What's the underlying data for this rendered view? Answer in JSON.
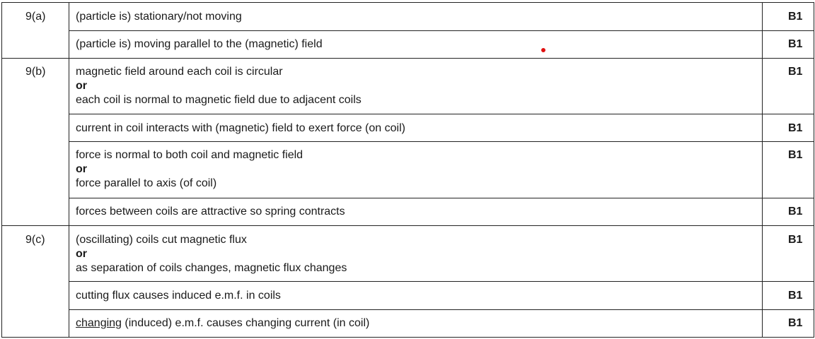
{
  "rows": [
    {
      "part": "9(a)",
      "lines": [
        "(particle is) stationary/not moving"
      ],
      "mark": "B1"
    },
    {
      "lines": [
        "(particle is) moving parallel to the (magnetic) field"
      ],
      "mark": "B1"
    },
    {
      "part": "9(b)",
      "lines": [
        "magnetic field around each coil is circular",
        "or",
        "each coil is normal to magnetic field due to adjacent coils"
      ],
      "mark": "B1"
    },
    {
      "lines": [
        "current in coil interacts with (magnetic) field to exert force (on coil)"
      ],
      "mark": "B1"
    },
    {
      "lines": [
        "force is normal to both coil and magnetic field",
        "or",
        "force parallel to axis (of coil)"
      ],
      "mark": "B1"
    },
    {
      "lines": [
        "forces between coils are attractive so spring contracts"
      ],
      "mark": "B1"
    },
    {
      "part": "9(c)",
      "lines": [
        "(oscillating) coils cut magnetic flux",
        "or",
        "as separation of coils changes, magnetic flux changes"
      ],
      "mark": "B1"
    },
    {
      "lines": [
        "cutting flux causes induced e.m.f. in coils"
      ],
      "mark": "B1"
    },
    {
      "lines_underlined_first_word": "changing",
      "lines": [
        "(induced) e.m.f. causes changing current (in coil)"
      ],
      "mark": "B1"
    }
  ]
}
